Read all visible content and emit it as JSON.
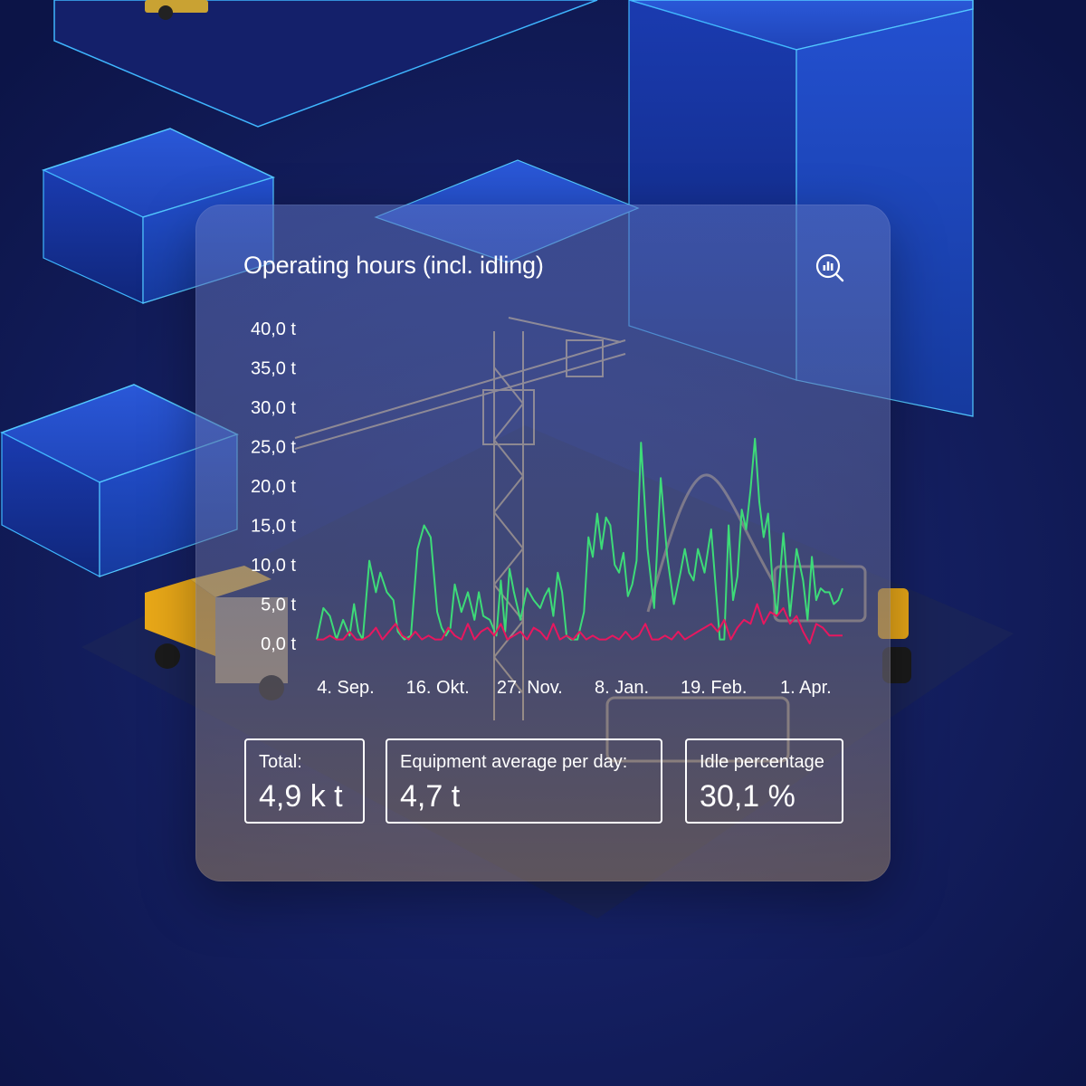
{
  "card": {
    "title": "Operating hours (incl. idling)",
    "zoom_icon": "chart-zoom-icon"
  },
  "colors": {
    "operating_line": "#3ddb78",
    "idle_line": "#e8175f",
    "text": "#ffffff"
  },
  "stats": {
    "total": {
      "label": "Total:",
      "value": "4,9 k t"
    },
    "average": {
      "label": "Equipment average per day:",
      "value": "4,7 t"
    },
    "idle": {
      "label": "Idle percentage",
      "value": "30,1 %"
    }
  },
  "chart_data": {
    "type": "line",
    "title": "Operating hours (incl. idling)",
    "xlabel": "",
    "ylabel": "",
    "ylim": [
      0,
      40
    ],
    "grid": false,
    "y_ticks": [
      "40,0 t",
      "35,0 t",
      "30,0 t",
      "25,0 t",
      "20,0 t",
      "15,0 t",
      "10,0 t",
      "5,0 t",
      "0,0 t"
    ],
    "x_tick_labels": [
      "4. Sep.",
      "16. Okt.",
      "27. Nov.",
      "8. Jan.",
      "19. Feb.",
      "1. Apr."
    ],
    "x_tick_days": [
      0,
      42,
      84,
      126,
      168,
      210
    ],
    "series": [
      {
        "key": "operating",
        "x": [
          0,
          3,
          6,
          9,
          12,
          15,
          17,
          19,
          21,
          24,
          27,
          29,
          32,
          35,
          37,
          40,
          43,
          46,
          49,
          52,
          55,
          57,
          59,
          61,
          63,
          66,
          69,
          72,
          74,
          76,
          79,
          82,
          84,
          86,
          88,
          90,
          93,
          96,
          99,
          102,
          104,
          106,
          108,
          110,
          112,
          114,
          116,
          119,
          122,
          124,
          126,
          128,
          130,
          132,
          134,
          136,
          138,
          140,
          142,
          144,
          146,
          148,
          151,
          154,
          157,
          160,
          163,
          166,
          168,
          170,
          172,
          174,
          177,
          180,
          182,
          184,
          186,
          188,
          190,
          192,
          194,
          196,
          198,
          200,
          202,
          204,
          206,
          208,
          210,
          213,
          216,
          219,
          222,
          224,
          226,
          228,
          230,
          232,
          234,
          236,
          238,
          240
        ],
        "y": [
          0.5,
          4.5,
          3.5,
          0.5,
          3.0,
          1.0,
          5.0,
          1.5,
          0.5,
          10.5,
          6.5,
          9.0,
          6.5,
          5.5,
          1.5,
          0.5,
          1.0,
          12.0,
          15.0,
          13.5,
          4.0,
          2.0,
          1.0,
          2.0,
          7.5,
          4.0,
          6.5,
          3.0,
          6.5,
          3.5,
          3.0,
          1.0,
          8.0,
          1.5,
          9.5,
          6.5,
          3.0,
          7.0,
          5.5,
          4.5,
          6.0,
          7.0,
          3.5,
          9.0,
          6.5,
          1.0,
          0.5,
          0.5,
          4.0,
          13.5,
          11.0,
          16.5,
          12.0,
          16.0,
          15.0,
          10.0,
          9.0,
          11.5,
          6.0,
          7.5,
          10.5,
          25.5,
          12.0,
          4.5,
          21.0,
          11.0,
          5.0,
          9.0,
          12.0,
          9.0,
          8.0,
          12.0,
          9.0,
          14.5,
          7.5,
          0.5,
          0.5,
          15.0,
          5.5,
          8.5,
          17.0,
          14.5,
          19.5,
          26.0,
          18.0,
          13.5,
          16.5,
          8.0,
          3.5,
          14.0,
          3.5,
          12.0,
          8.0,
          3.0,
          11.0,
          5.5,
          7.0,
          6.5,
          6.5,
          5.0,
          5.5,
          7.0
        ]
      },
      {
        "key": "idle",
        "x": [
          0,
          3,
          6,
          9,
          12,
          15,
          18,
          21,
          24,
          27,
          30,
          33,
          36,
          39,
          42,
          45,
          48,
          51,
          54,
          57,
          60,
          63,
          66,
          69,
          72,
          75,
          78,
          81,
          84,
          87,
          90,
          93,
          96,
          99,
          102,
          105,
          108,
          111,
          114,
          117,
          120,
          123,
          126,
          129,
          132,
          135,
          138,
          141,
          144,
          147,
          150,
          153,
          156,
          159,
          162,
          165,
          168,
          171,
          174,
          177,
          180,
          183,
          186,
          189,
          192,
          195,
          198,
          201,
          204,
          207,
          210,
          213,
          216,
          219,
          222,
          225,
          228,
          231,
          234,
          237,
          240
        ],
        "y": [
          0.5,
          0.5,
          1.0,
          0.5,
          0.5,
          1.5,
          0.5,
          0.5,
          1.0,
          2.0,
          0.5,
          1.5,
          2.5,
          1.0,
          0.5,
          1.5,
          0.5,
          1.0,
          0.5,
          0.5,
          2.0,
          1.0,
          0.5,
          2.5,
          0.5,
          1.5,
          2.0,
          1.0,
          2.5,
          0.5,
          1.0,
          1.5,
          0.5,
          2.0,
          1.5,
          0.5,
          2.5,
          0.5,
          1.0,
          0.5,
          1.5,
          0.5,
          1.0,
          0.5,
          0.5,
          1.0,
          0.5,
          1.5,
          0.5,
          1.0,
          2.5,
          0.5,
          0.5,
          1.0,
          0.5,
          1.5,
          0.5,
          1.0,
          1.5,
          2.0,
          2.5,
          1.5,
          3.0,
          0.5,
          2.0,
          3.0,
          2.5,
          5.0,
          2.5,
          4.0,
          3.5,
          4.5,
          2.5,
          3.5,
          1.5,
          0.0,
          2.5,
          2.0,
          1.0,
          1.0,
          1.0
        ]
      }
    ]
  }
}
